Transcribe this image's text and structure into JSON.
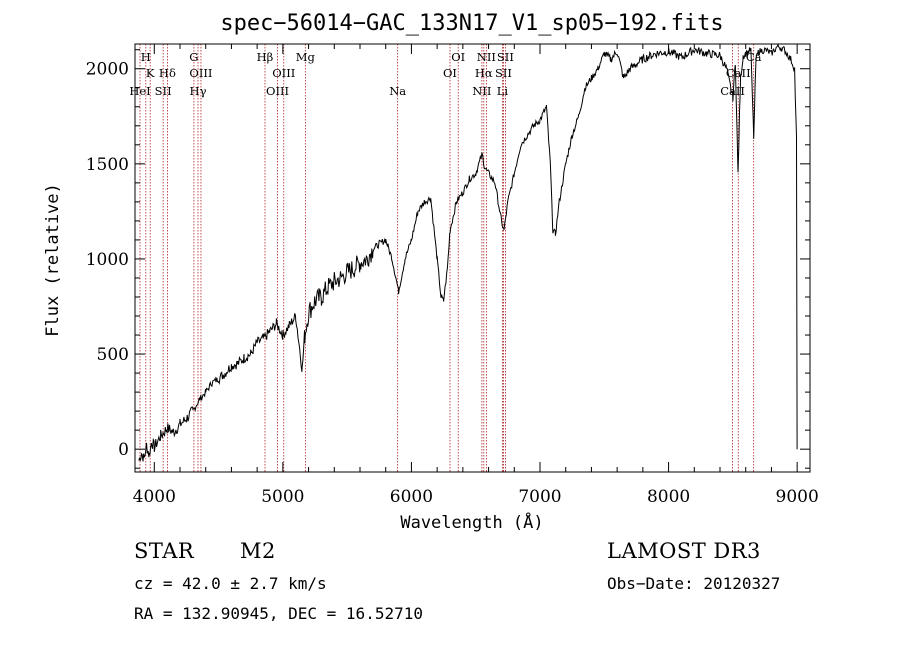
{
  "chart_data": {
    "type": "line",
    "title": "spec−56014−GAC_133N17_V1_sp05−192.fits",
    "xlabel": "Wavelength (Å)",
    "ylabel": "Flux (relative)",
    "xlim": [
      3850,
      9100
    ],
    "ylim": [
      -120,
      2130
    ],
    "xticks": [
      4000,
      5000,
      6000,
      7000,
      8000,
      9000
    ],
    "yticks": [
      0,
      500,
      1000,
      1500,
      2000
    ],
    "xtick_labels": [
      "4000",
      "5000",
      "6000",
      "7000",
      "8000",
      "9000"
    ],
    "ytick_labels": [
      "0",
      "500",
      "1000",
      "1500",
      "2000"
    ],
    "series": [
      {
        "name": "spectrum",
        "x": [
          3880,
          3900,
          3920,
          3940,
          3960,
          3980,
          4000,
          4050,
          4100,
          4150,
          4200,
          4250,
          4300,
          4350,
          4400,
          4450,
          4500,
          4550,
          4600,
          4650,
          4700,
          4750,
          4800,
          4850,
          4900,
          4950,
          5000,
          5050,
          5100,
          5150,
          5170,
          5200,
          5250,
          5300,
          5350,
          5400,
          5450,
          5500,
          5550,
          5600,
          5650,
          5700,
          5750,
          5800,
          5850,
          5900,
          5950,
          6000,
          6050,
          6100,
          6150,
          6200,
          6230,
          6250,
          6280,
          6300,
          6350,
          6400,
          6450,
          6500,
          6550,
          6570,
          6600,
          6650,
          6700,
          6720,
          6750,
          6800,
          6850,
          6900,
          6950,
          7000,
          7050,
          7080,
          7100,
          7120,
          7150,
          7200,
          7250,
          7300,
          7350,
          7400,
          7450,
          7500,
          7550,
          7600,
          7650,
          7700,
          7800,
          7900,
          8000,
          8100,
          8200,
          8300,
          8400,
          8450,
          8500,
          8520,
          8540,
          8560,
          8580,
          8600,
          8640,
          8662,
          8680,
          8700,
          8750,
          8800,
          8850,
          8900,
          8950,
          8980,
          8995,
          9000
        ],
        "y": [
          -60,
          -20,
          -50,
          20,
          -30,
          40,
          10,
          70,
          110,
          90,
          130,
          160,
          200,
          260,
          300,
          350,
          370,
          400,
          440,
          450,
          480,
          500,
          560,
          580,
          620,
          660,
          600,
          650,
          700,
          420,
          600,
          720,
          780,
          800,
          850,
          880,
          900,
          930,
          950,
          980,
          1000,
          1050,
          1080,
          1100,
          1000,
          830,
          1000,
          1100,
          1250,
          1300,
          1320,
          1000,
          800,
          780,
          950,
          1150,
          1300,
          1350,
          1420,
          1450,
          1550,
          1480,
          1450,
          1400,
          1200,
          1150,
          1300,
          1450,
          1600,
          1650,
          1700,
          1730,
          1800,
          1500,
          1150,
          1130,
          1300,
          1500,
          1650,
          1750,
          1900,
          1950,
          2000,
          2080,
          2050,
          2090,
          1950,
          2000,
          2050,
          2080,
          2090,
          2060,
          2100,
          2080,
          2070,
          2000,
          1850,
          2030,
          1450,
          1950,
          2070,
          2080,
          2100,
          1640,
          2050,
          2090,
          2100,
          2080,
          2120,
          2100,
          2050,
          2000,
          1630,
          0
        ]
      }
    ],
    "spectral_lines": [
      {
        "label": "H",
        "wl": 3934,
        "row": 0
      },
      {
        "label": "K",
        "wl": 3968,
        "row": 1
      },
      {
        "label": "HeI",
        "wl": 3889,
        "row": 2
      },
      {
        "label": "SII",
        "wl": 4069,
        "row": 2
      },
      {
        "label": "Hδ",
        "wl": 4102,
        "row": 1
      },
      {
        "label": "G",
        "wl": 4308,
        "row": 0
      },
      {
        "label": "OIII",
        "wl": 4363,
        "row": 1
      },
      {
        "label": "Hγ",
        "wl": 4340,
        "row": 2
      },
      {
        "label": "Hβ",
        "wl": 4861,
        "row": 0
      },
      {
        "label": "OIII",
        "wl": 5007,
        "row": 1
      },
      {
        "label": "OIII",
        "wl": 4959,
        "row": 2
      },
      {
        "label": "Mg",
        "wl": 5175,
        "row": 0
      },
      {
        "label": "Na",
        "wl": 5893,
        "row": 2
      },
      {
        "label": "OI",
        "wl": 6364,
        "row": 0
      },
      {
        "label": "OI",
        "wl": 6300,
        "row": 1
      },
      {
        "label": "NII",
        "wl": 6583,
        "row": 0
      },
      {
        "label": "Hα",
        "wl": 6563,
        "row": 1
      },
      {
        "label": "NII",
        "wl": 6548,
        "row": 2
      },
      {
        "label": "SII",
        "wl": 6731,
        "row": 0
      },
      {
        "label": "SII",
        "wl": 6716,
        "row": 1
      },
      {
        "label": "Li",
        "wl": 6708,
        "row": 2
      },
      {
        "label": "Ca",
        "wl": 8662,
        "row": 0
      },
      {
        "label": "CaII",
        "wl": 8542,
        "row": 1
      },
      {
        "label": "CaII",
        "wl": 8498,
        "row": 2
      }
    ],
    "grid": false,
    "legend": "none"
  },
  "info": {
    "class": "STAR",
    "subclass": "M2",
    "survey": "LAMOST DR3",
    "cz": "cz = 42.0 ± 2.7 km/s",
    "obs_date": "Obs−Date: 20120327",
    "coords": "RA = 132.90945, DEC =  16.52710"
  },
  "colors": {
    "axis": "#000000",
    "spectrum": "#000000",
    "line_marker": "#b22222"
  }
}
